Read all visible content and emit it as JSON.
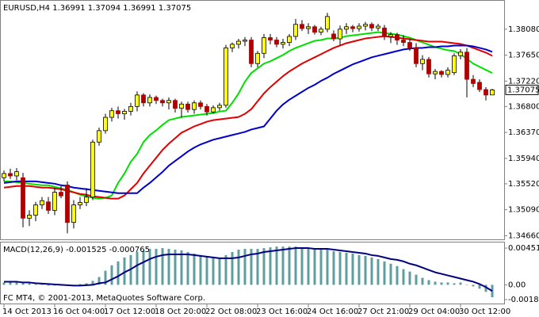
{
  "chart_data": [
    {
      "type": "candlestick",
      "title": "EURUSD,H4",
      "categories": [
        "14 Oct 2013",
        null,
        null,
        null,
        null,
        null,
        null,
        null,
        "16 Oct 04:00",
        null,
        null,
        null,
        null,
        null,
        null,
        null,
        "17 Oct 12:00",
        null,
        null,
        null,
        null,
        null,
        null,
        null,
        "18 Oct 20:00",
        null,
        null,
        null,
        null,
        null,
        null,
        null,
        "22 Oct 08:00",
        null,
        null,
        null,
        null,
        null,
        null,
        null,
        "23 Oct 16:00",
        null,
        null,
        null,
        null,
        null,
        null,
        null,
        "24 Oct 16:00",
        null,
        null,
        null,
        null,
        null,
        null,
        null,
        "27 Oct 21:00",
        null,
        null,
        null,
        null,
        null,
        null,
        null,
        "29 Oct 04:00",
        null,
        null,
        null,
        null,
        null,
        null,
        null,
        "30 Oct 12:00",
        null,
        null,
        null,
        null,
        null
      ],
      "open": [
        1.3562,
        1.3569,
        1.3565,
        1.3562,
        1.3495,
        1.35,
        1.3517,
        1.3522,
        1.3508,
        1.3538,
        1.355,
        1.3488,
        1.3517,
        1.3521,
        1.353,
        1.3621,
        1.364,
        1.3662,
        1.3673,
        1.3668,
        1.3672,
        1.368,
        1.3699,
        1.3686,
        1.3695,
        1.369,
        1.3686,
        1.369,
        1.3677,
        1.3684,
        1.3675,
        1.3686,
        1.368,
        1.3671,
        1.3678,
        1.3682,
        1.3777,
        1.3783,
        1.3788,
        1.379,
        1.3751,
        1.3768,
        1.3794,
        1.379,
        1.3783,
        1.3786,
        1.3796,
        1.3816,
        1.3809,
        1.3812,
        1.3803,
        1.3808,
        1.38,
        1.3792,
        1.3808,
        1.3812,
        1.3809,
        1.3813,
        1.3816,
        1.381,
        1.381,
        1.3796,
        1.3799,
        1.379,
        1.3786,
        1.3777,
        1.3751,
        1.3758,
        1.3734,
        1.3738,
        1.3733,
        1.3736,
        1.3764,
        1.377,
        1.3725,
        1.372,
        1.3708,
        1.36991
      ],
      "high": [
        1.3574,
        1.3577,
        1.3578,
        1.357,
        1.3508,
        1.3522,
        1.353,
        1.353,
        1.3545,
        1.3548,
        1.3556,
        1.3525,
        1.353,
        1.3545,
        1.3625,
        1.3645,
        1.3668,
        1.3678,
        1.368,
        1.3676,
        1.3686,
        1.3705,
        1.3702,
        1.37,
        1.3698,
        1.3693,
        1.3695,
        1.3693,
        1.3688,
        1.3688,
        1.369,
        1.369,
        1.3684,
        1.3682,
        1.3686,
        1.3782,
        1.3786,
        1.3792,
        1.3795,
        1.3795,
        1.3772,
        1.38,
        1.38,
        1.3795,
        1.3792,
        1.38,
        1.3825,
        1.3823,
        1.3818,
        1.3815,
        1.3812,
        1.3835,
        1.3806,
        1.3814,
        1.3818,
        1.3815,
        1.3818,
        1.382,
        1.3819,
        1.3817,
        1.3815,
        1.3803,
        1.3802,
        1.3798,
        1.3792,
        1.3785,
        1.3765,
        1.3762,
        1.3742,
        1.374,
        1.3745,
        1.3768,
        1.3775,
        1.3777,
        1.3732,
        1.3725,
        1.3712,
        1.37094
      ],
      "low": [
        1.3556,
        1.356,
        1.3558,
        1.348,
        1.3482,
        1.349,
        1.351,
        1.3502,
        1.35,
        1.3528,
        1.347,
        1.3478,
        1.351,
        1.3515,
        1.3525,
        1.3615,
        1.3635,
        1.3655,
        1.366,
        1.3658,
        1.3665,
        1.3672,
        1.368,
        1.368,
        1.3684,
        1.368,
        1.3675,
        1.367,
        1.3662,
        1.367,
        1.3668,
        1.3675,
        1.3665,
        1.3668,
        1.3673,
        1.3678,
        1.377,
        1.3776,
        1.378,
        1.3745,
        1.3745,
        1.376,
        1.3783,
        1.3778,
        1.3776,
        1.378,
        1.379,
        1.3805,
        1.38,
        1.3799,
        1.3798,
        1.3803,
        1.3788,
        1.3782,
        1.38,
        1.3803,
        1.3804,
        1.3806,
        1.3805,
        1.3805,
        1.379,
        1.3785,
        1.3782,
        1.378,
        1.3772,
        1.3745,
        1.374,
        1.3728,
        1.3725,
        1.3728,
        1.3728,
        1.3732,
        1.3758,
        1.3695,
        1.3712,
        1.3704,
        1.369,
        1.36991
      ],
      "close": [
        1.3569,
        1.3565,
        1.3572,
        1.3495,
        1.35,
        1.3517,
        1.3524,
        1.3508,
        1.3538,
        1.3532,
        1.3488,
        1.3517,
        1.3521,
        1.353,
        1.3621,
        1.364,
        1.3662,
        1.3673,
        1.3668,
        1.3672,
        1.368,
        1.3699,
        1.3686,
        1.3695,
        1.369,
        1.3686,
        1.369,
        1.3677,
        1.3684,
        1.3675,
        1.3686,
        1.368,
        1.3671,
        1.3678,
        1.3682,
        1.3777,
        1.3783,
        1.3788,
        1.379,
        1.3751,
        1.3768,
        1.3794,
        1.379,
        1.3783,
        1.3786,
        1.3796,
        1.3816,
        1.3809,
        1.3812,
        1.3803,
        1.3808,
        1.3829,
        1.3792,
        1.3808,
        1.3812,
        1.3809,
        1.3813,
        1.3816,
        1.381,
        1.3813,
        1.3796,
        1.3799,
        1.379,
        1.3786,
        1.3777,
        1.3751,
        1.3758,
        1.3734,
        1.3738,
        1.3733,
        1.374,
        1.3764,
        1.377,
        1.3725,
        1.3718,
        1.3708,
        1.3699,
        1.37075
      ],
      "up_color": "#ffff00",
      "down_color": "#b00000",
      "series": [
        {
          "color": "#00e000",
          "values": [
            1.3556,
            1.3556,
            1.35547,
            1.35534,
            1.35521,
            1.35508,
            1.35495,
            1.35495,
            1.35469,
            1.35443,
            1.35417,
            1.35378,
            1.35339,
            1.35313,
            1.35287,
            1.35274,
            1.35287,
            1.35326,
            1.35534,
            1.3569,
            1.35885,
            1.36015,
            1.3621,
            1.36327,
            1.36405,
            1.36496,
            1.36574,
            1.366,
            1.36626,
            1.36639,
            1.36652,
            1.36665,
            1.36678,
            1.36691,
            1.36717,
            1.3673,
            1.3686,
            1.37016,
            1.37211,
            1.37354,
            1.37432,
            1.3751,
            1.37549,
            1.37601,
            1.37653,
            1.37718,
            1.3777,
            1.37809,
            1.37848,
            1.37887,
            1.379,
            1.37926,
            1.37926,
            1.37939,
            1.37965,
            1.37978,
            1.37991,
            1.38004,
            1.38017,
            1.3803,
            1.38017,
            1.38004,
            1.37991,
            1.37965,
            1.37939,
            1.379,
            1.37861,
            1.37822,
            1.37783,
            1.37757,
            1.37731,
            1.37718,
            1.37666,
            1.37588,
            1.3751,
            1.37458,
            1.37406,
            1.37354
          ]
        },
        {
          "color": "#e00000",
          "values": [
            1.35456,
            1.35469,
            1.35482,
            1.35482,
            1.35482,
            1.35469,
            1.35456,
            1.35456,
            1.35443,
            1.3543,
            1.35404,
            1.35378,
            1.35352,
            1.35339,
            1.35313,
            1.353,
            1.35287,
            1.35274,
            1.35274,
            1.35326,
            1.3543,
            1.35534,
            1.3569,
            1.3582,
            1.3595,
            1.3608,
            1.36184,
            1.36275,
            1.36366,
            1.36418,
            1.3647,
            1.36509,
            1.36548,
            1.36574,
            1.36587,
            1.366,
            1.36613,
            1.36626,
            1.36678,
            1.36756,
            1.36886,
            1.37016,
            1.3712,
            1.37211,
            1.37302,
            1.3738,
            1.37445,
            1.3751,
            1.37562,
            1.37614,
            1.37666,
            1.37718,
            1.3777,
            1.37809,
            1.37848,
            1.37874,
            1.379,
            1.37926,
            1.37939,
            1.37952,
            1.37965,
            1.37952,
            1.37939,
            1.37926,
            1.37913,
            1.379,
            1.37887,
            1.37874,
            1.37874,
            1.37874,
            1.37861,
            1.37848,
            1.37835,
            1.37809,
            1.3777,
            1.37731,
            1.37692,
            1.3764
          ]
        },
        {
          "color": "#0000cc",
          "values": [
            1.35534,
            1.35547,
            1.3556,
            1.3556,
            1.3556,
            1.3556,
            1.35547,
            1.35534,
            1.35521,
            1.35495,
            1.35482,
            1.35456,
            1.35443,
            1.3543,
            1.35417,
            1.35404,
            1.35391,
            1.35378,
            1.35365,
            1.35365,
            1.35365,
            1.35365,
            1.35456,
            1.35534,
            1.35625,
            1.35716,
            1.3582,
            1.35898,
            1.35976,
            1.36054,
            1.36119,
            1.36171,
            1.3621,
            1.36249,
            1.36275,
            1.36301,
            1.36327,
            1.36353,
            1.36379,
            1.36418,
            1.36444,
            1.3647,
            1.366,
            1.3673,
            1.36834,
            1.36912,
            1.36977,
            1.37042,
            1.37107,
            1.37159,
            1.37224,
            1.37276,
            1.37341,
            1.37393,
            1.37445,
            1.37497,
            1.37536,
            1.37575,
            1.37614,
            1.3764,
            1.37666,
            1.37692,
            1.37718,
            1.37744,
            1.37757,
            1.3777,
            1.3777,
            1.37783,
            1.37783,
            1.37796,
            1.37796,
            1.37809,
            1.37809,
            1.37809,
            1.37796,
            1.3777,
            1.37744,
            1.37705
          ]
        }
      ],
      "ylim": [
        1.346,
        1.3855
      ],
      "yticks": [
        {
          "value": 1.3808,
          "label": "1.38080"
        },
        {
          "value": 1.3765,
          "label": "1.37650"
        },
        {
          "value": 1.3722,
          "label": "1.37220"
        },
        {
          "value": 1.368,
          "label": "1.36800"
        },
        {
          "value": 1.3637,
          "label": "1.36370"
        },
        {
          "value": 1.3594,
          "label": "1.35940"
        },
        {
          "value": 1.3552,
          "label": "1.35520"
        },
        {
          "value": 1.3509,
          "label": "1.35090"
        },
        {
          "value": 1.3466,
          "label": "1.34660"
        }
      ]
    },
    {
      "type": "macd",
      "title": "MACD(12,26,9)",
      "series": [
        {
          "type": "bar",
          "color": "#5f9ea0",
          "values": [
            0.000288,
            0.000384,
            0.000384,
            0.000288,
            0.000192,
            9.6e-05,
            0,
            -9.6e-05,
            -9.6e-05,
            -9.6e-05,
            -9.6e-05,
            0,
            9.6e-05,
            0.000192,
            0.00048,
            0.00096,
            0.001728,
            0.0024,
            0.00288,
            0.00336,
            0.003648,
            0.004032,
            0.004224,
            0.004416,
            0.004416,
            0.004512,
            0.004416,
            0.00432,
            0.004224,
            0.004032,
            0.00384,
            0.003648,
            0.003456,
            0.00336,
            0.003264,
            0.003648,
            0.004032,
            0.00432,
            0.004416,
            0.004416,
            0.004416,
            0.004512,
            0.004608,
            0.004704,
            0.004704,
            0.004704,
            0.004704,
            0.004608,
            0.004512,
            0.004416,
            0.00432,
            0.00432,
            0.004128,
            0.004032,
            0.003936,
            0.00384,
            0.003648,
            0.003552,
            0.00336,
            0.003168,
            0.00288,
            0.002592,
            0.002304,
            0.00192,
            0.001632,
            0.001248,
            0.000864,
            0.000576,
            0.000384,
            0.000288,
            0.000288,
            0.000192,
            0.000288,
            0,
            -0.000192,
            -0.00048,
            -0.000864,
            -0.001525
          ]
        },
        {
          "type": "line",
          "color": "#000080",
          "values": [
            0.000384,
            0.000384,
            0.000384,
            0.000288,
            0.000288,
            0.000192,
            0.000144,
            9.6e-05,
            4.8e-05,
            0,
            -4.8e-05,
            -9.6e-05,
            -9.6e-05,
            -4.8e-05,
            0,
            0.000192,
            0.000288,
            0.000672,
            0.001056,
            0.001536,
            0.00192,
            0.0024,
            0.002784,
            0.003168,
            0.003456,
            0.003648,
            0.003744,
            0.003744,
            0.003744,
            0.003744,
            0.003648,
            0.003552,
            0.003456,
            0.00336,
            0.003264,
            0.003264,
            0.003264,
            0.00336,
            0.003552,
            0.003744,
            0.00384,
            0.004032,
            0.004128,
            0.004224,
            0.00432,
            0.004416,
            0.004512,
            0.004512,
            0.004512,
            0.004416,
            0.004416,
            0.004416,
            0.00432,
            0.004224,
            0.004128,
            0.004032,
            0.003936,
            0.00384,
            0.003648,
            0.003552,
            0.00336,
            0.003168,
            0.003072,
            0.00288,
            0.002592,
            0.0024,
            0.002112,
            0.001824,
            0.001536,
            0.001344,
            0.001152,
            0.00096,
            0.000768,
            0.000576,
            0.000384,
            9.6e-05,
            -0.000288,
            -0.000765
          ]
        }
      ],
      "ylim": [
        -0.0023,
        0.0052
      ],
      "yticks": [
        0.004513,
        {
          "value": 0,
          "label": "0.00"
        },
        -0.001813
      ]
    }
  ],
  "footer": "FC MT4, © 2001-2013, MetaQuotes Software Corp."
}
